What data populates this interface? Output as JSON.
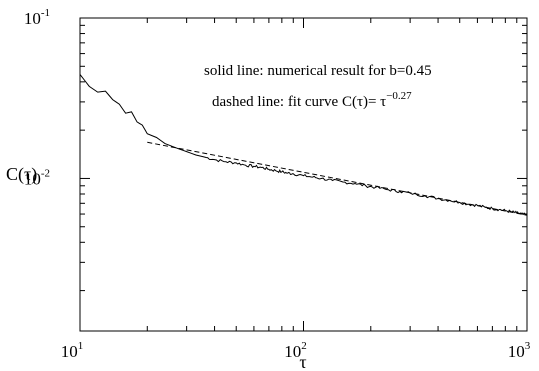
{
  "chart_data": {
    "type": "line",
    "xlabel": "τ",
    "ylabel": "C(τ)",
    "x_scale": "log",
    "y_scale": "log",
    "xlim": [
      10,
      1000
    ],
    "ylim": [
      0.00112,
      0.1
    ],
    "grid": false,
    "x_ticks": [
      {
        "value": 10,
        "base": "10",
        "exp": "1"
      },
      {
        "value": 100,
        "base": "10",
        "exp": "2"
      },
      {
        "value": 1000,
        "base": "10",
        "exp": "3"
      }
    ],
    "y_ticks": [
      {
        "value": 0.01,
        "base": "10",
        "exp": "-2"
      },
      {
        "value": 0.1,
        "base": "10",
        "exp": "-1"
      }
    ],
    "annotations": [
      {
        "text": "solid line: numerical result for b=0.45"
      },
      {
        "text": "dashed line: fit curve C(τ)= τ",
        "exp": "−0.27"
      }
    ],
    "series": [
      {
        "style": "solid",
        "color": "#000000",
        "x": [
          10,
          11,
          12,
          13,
          14,
          15,
          16,
          17,
          18,
          19,
          20,
          22,
          24,
          26,
          28,
          30,
          33,
          36,
          40,
          45,
          50,
          55,
          60,
          65,
          70,
          75,
          80,
          85,
          90,
          100,
          110,
          120,
          135,
          150,
          170,
          190,
          210,
          240,
          270,
          300,
          350,
          400,
          450,
          500,
          550,
          600,
          650,
          700,
          750,
          800,
          850,
          900,
          950,
          1000
        ],
        "y": [
          0.0445,
          0.0375,
          0.0345,
          0.035,
          0.031,
          0.029,
          0.0255,
          0.026,
          0.0225,
          0.0215,
          0.019,
          0.018,
          0.0165,
          0.0158,
          0.0152,
          0.0147,
          0.014,
          0.0136,
          0.0131,
          0.0127,
          0.0125,
          0.0121,
          0.0119,
          0.0117,
          0.0114,
          0.0112,
          0.011,
          0.0108,
          0.0107,
          0.0104,
          0.0102,
          0.01,
          0.0097,
          0.0095,
          0.0093,
          0.009,
          0.0088,
          0.0085,
          0.0083,
          0.0081,
          0.0078,
          0.0075,
          0.0073,
          0.0071,
          0.0069,
          0.0068,
          0.0066,
          0.0065,
          0.0064,
          0.0063,
          0.0062,
          0.0061,
          0.006,
          0.0059
        ]
      },
      {
        "style": "dashed",
        "color": "#000000",
        "formula": "C(τ)= τ^−0.27",
        "x": [
          20,
          1000
        ],
        "y": [
          0.0168,
          0.0059
        ]
      }
    ]
  }
}
